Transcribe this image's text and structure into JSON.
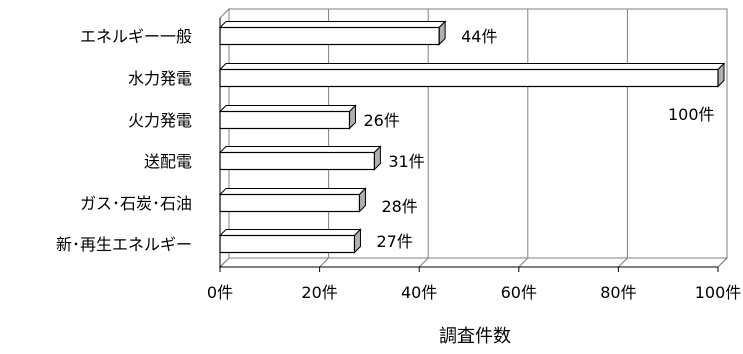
{
  "chart_data": {
    "type": "bar",
    "orientation": "horizontal",
    "style": "3d",
    "categories": [
      "エネルギー一般",
      "水力発電",
      "火力発電",
      "送配電",
      "ガス･石炭･石油",
      "新･再生エネルギー"
    ],
    "values": [
      44,
      100,
      26,
      31,
      28,
      27
    ],
    "data_labels": [
      "44件",
      "100件",
      "26件",
      "31件",
      "28件",
      "27件"
    ],
    "xlim": [
      0,
      100
    ],
    "x_ticks": [
      0,
      20,
      40,
      60,
      80,
      100
    ],
    "x_tick_labels": [
      "0件",
      "20件",
      "40件",
      "60件",
      "80件",
      "100件"
    ],
    "xlabel": "調査件数",
    "ylabel": "",
    "title": "",
    "grid": true,
    "legend": "none",
    "colors": {
      "bar_face": "#ffffff",
      "bar_top": "#ffffff",
      "bar_side": "#b0b0b0",
      "bar_outline": "#000000",
      "grid": "#808080",
      "wall": "#ffffff",
      "floor": "#ffffff"
    }
  }
}
